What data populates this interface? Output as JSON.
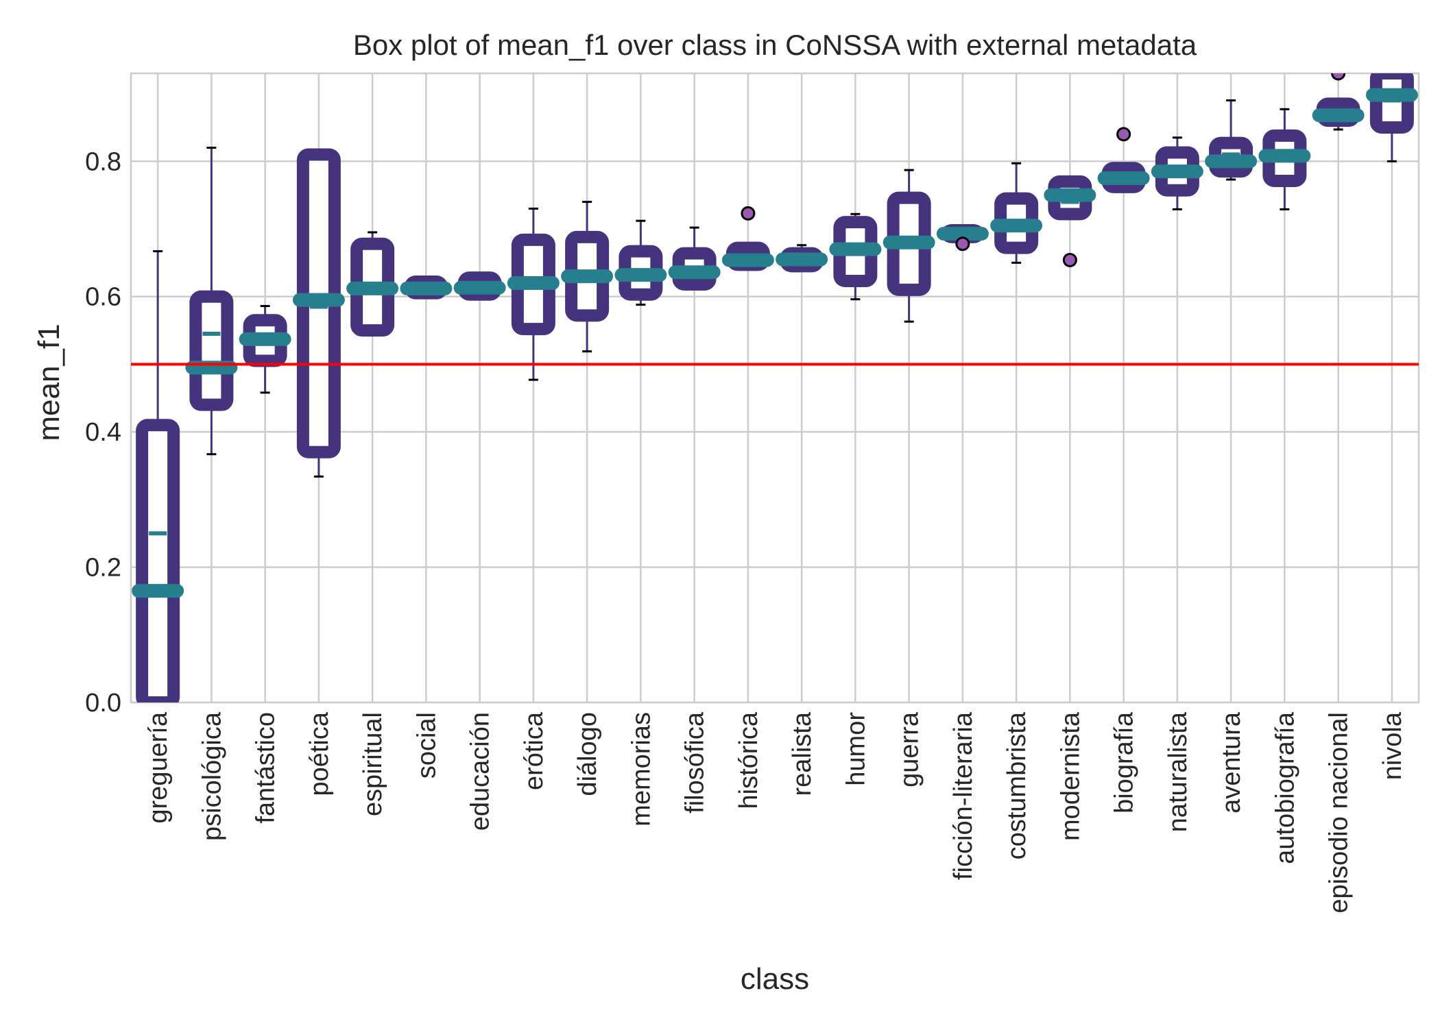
{
  "chart_data": {
    "type": "box",
    "title": "Box plot of mean_f1 over class in CoNSSA with external metadata",
    "xlabel": "class",
    "ylabel": "mean_f1",
    "ylim": [
      0.0,
      0.93
    ],
    "yticks": [
      "0.0",
      "0.2",
      "0.4",
      "0.6",
      "0.8"
    ],
    "ytick_values": [
      0.0,
      0.2,
      0.4,
      0.6,
      0.8
    ],
    "grid": true,
    "reference_line": {
      "y": 0.5,
      "color": "#ff0000"
    },
    "colors": {
      "box": "#46337e",
      "median": "#277f8e",
      "whisker": "#46337e",
      "cap": "#000000",
      "outlier_fill": "#9b59b6",
      "highlight_label": "#2c6b9e"
    },
    "highlighted_category": "ficción-literaria",
    "categories": [
      {
        "label": "greguería",
        "whislo": 0.0,
        "q1": 0.0,
        "median": 0.165,
        "mean": 0.25,
        "q3": 0.41,
        "whishi": 0.667,
        "fliers": []
      },
      {
        "label": "psicológica",
        "whislo": 0.367,
        "q1": 0.44,
        "median": 0.495,
        "mean": 0.545,
        "q3": 0.6,
        "whishi": 0.82,
        "fliers": []
      },
      {
        "label": "fantástico",
        "whislo": 0.458,
        "q1": 0.505,
        "median": 0.537,
        "mean": 0.54,
        "q3": 0.565,
        "whishi": 0.586,
        "fliers": []
      },
      {
        "label": "poética",
        "whislo": 0.334,
        "q1": 0.37,
        "median": 0.595,
        "mean": 0.585,
        "q3": 0.81,
        "whishi": 0.81,
        "fliers": []
      },
      {
        "label": "espiritual",
        "whislo": 0.544,
        "q1": 0.55,
        "median": 0.612,
        "mean": 0.61,
        "q3": 0.678,
        "whishi": 0.695,
        "fliers": []
      },
      {
        "label": "social",
        "whislo": 0.605,
        "q1": 0.605,
        "median": 0.612,
        "mean": 0.614,
        "q3": 0.622,
        "whishi": 0.625,
        "fliers": []
      },
      {
        "label": "educación",
        "whislo": 0.597,
        "q1": 0.603,
        "median": 0.613,
        "mean": 0.617,
        "q3": 0.628,
        "whishi": 0.63,
        "fliers": []
      },
      {
        "label": "erótica",
        "whislo": 0.477,
        "q1": 0.552,
        "median": 0.62,
        "mean": 0.618,
        "q3": 0.684,
        "whishi": 0.73,
        "fliers": []
      },
      {
        "label": "diálogo",
        "whislo": 0.519,
        "q1": 0.572,
        "median": 0.63,
        "mean": 0.635,
        "q3": 0.688,
        "whishi": 0.74,
        "fliers": []
      },
      {
        "label": "memorias",
        "whislo": 0.588,
        "q1": 0.603,
        "median": 0.632,
        "mean": 0.63,
        "q3": 0.667,
        "whishi": 0.712,
        "fliers": []
      },
      {
        "label": "filosófica",
        "whislo": 0.616,
        "q1": 0.618,
        "median": 0.636,
        "mean": 0.64,
        "q3": 0.664,
        "whishi": 0.702,
        "fliers": []
      },
      {
        "label": "histórica",
        "whislo": 0.643,
        "q1": 0.647,
        "median": 0.654,
        "mean": 0.66,
        "q3": 0.672,
        "whishi": 0.675,
        "fliers": [
          0.723
        ]
      },
      {
        "label": "realista",
        "whislo": 0.638,
        "q1": 0.645,
        "median": 0.655,
        "mean": 0.656,
        "q3": 0.664,
        "whishi": 0.676,
        "fliers": []
      },
      {
        "label": "humor",
        "whislo": 0.596,
        "q1": 0.623,
        "median": 0.67,
        "mean": 0.668,
        "q3": 0.71,
        "whishi": 0.722,
        "fliers": []
      },
      {
        "label": "guerra",
        "whislo": 0.563,
        "q1": 0.61,
        "median": 0.68,
        "mean": 0.68,
        "q3": 0.746,
        "whishi": 0.787,
        "fliers": []
      },
      {
        "label": "ficción-literaria",
        "whislo": 0.688,
        "q1": 0.688,
        "median": 0.693,
        "mean": 0.693,
        "q3": 0.698,
        "whishi": 0.698,
        "fliers": [
          0.678
        ]
      },
      {
        "label": "costumbrista",
        "whislo": 0.65,
        "q1": 0.672,
        "median": 0.705,
        "mean": 0.705,
        "q3": 0.745,
        "whishi": 0.797,
        "fliers": []
      },
      {
        "label": "modernista",
        "whislo": 0.722,
        "q1": 0.722,
        "median": 0.75,
        "mean": 0.74,
        "q3": 0.77,
        "whishi": 0.775,
        "fliers": [
          0.654
        ]
      },
      {
        "label": "biografía",
        "whislo": 0.757,
        "q1": 0.762,
        "median": 0.775,
        "mean": 0.778,
        "q3": 0.79,
        "whishi": 0.79,
        "fliers": [
          0.84
        ]
      },
      {
        "label": "naturalista",
        "whislo": 0.729,
        "q1": 0.757,
        "median": 0.785,
        "mean": 0.785,
        "q3": 0.813,
        "whishi": 0.835,
        "fliers": []
      },
      {
        "label": "aventura",
        "whislo": 0.773,
        "q1": 0.785,
        "median": 0.8,
        "mean": 0.81,
        "q3": 0.827,
        "whishi": 0.89,
        "fliers": []
      },
      {
        "label": "autobiografía",
        "whislo": 0.729,
        "q1": 0.771,
        "median": 0.808,
        "mean": 0.806,
        "q3": 0.838,
        "whishi": 0.877,
        "fliers": []
      },
      {
        "label": "episodio nacional",
        "whislo": 0.847,
        "q1": 0.86,
        "median": 0.868,
        "mean": 0.872,
        "q3": 0.885,
        "whishi": 0.885,
        "fliers": [
          0.93
        ]
      },
      {
        "label": "nivola",
        "whislo": 0.8,
        "q1": 0.85,
        "median": 0.898,
        "mean": 0.89,
        "q3": 0.93,
        "whishi": 0.93,
        "fliers": []
      }
    ]
  }
}
